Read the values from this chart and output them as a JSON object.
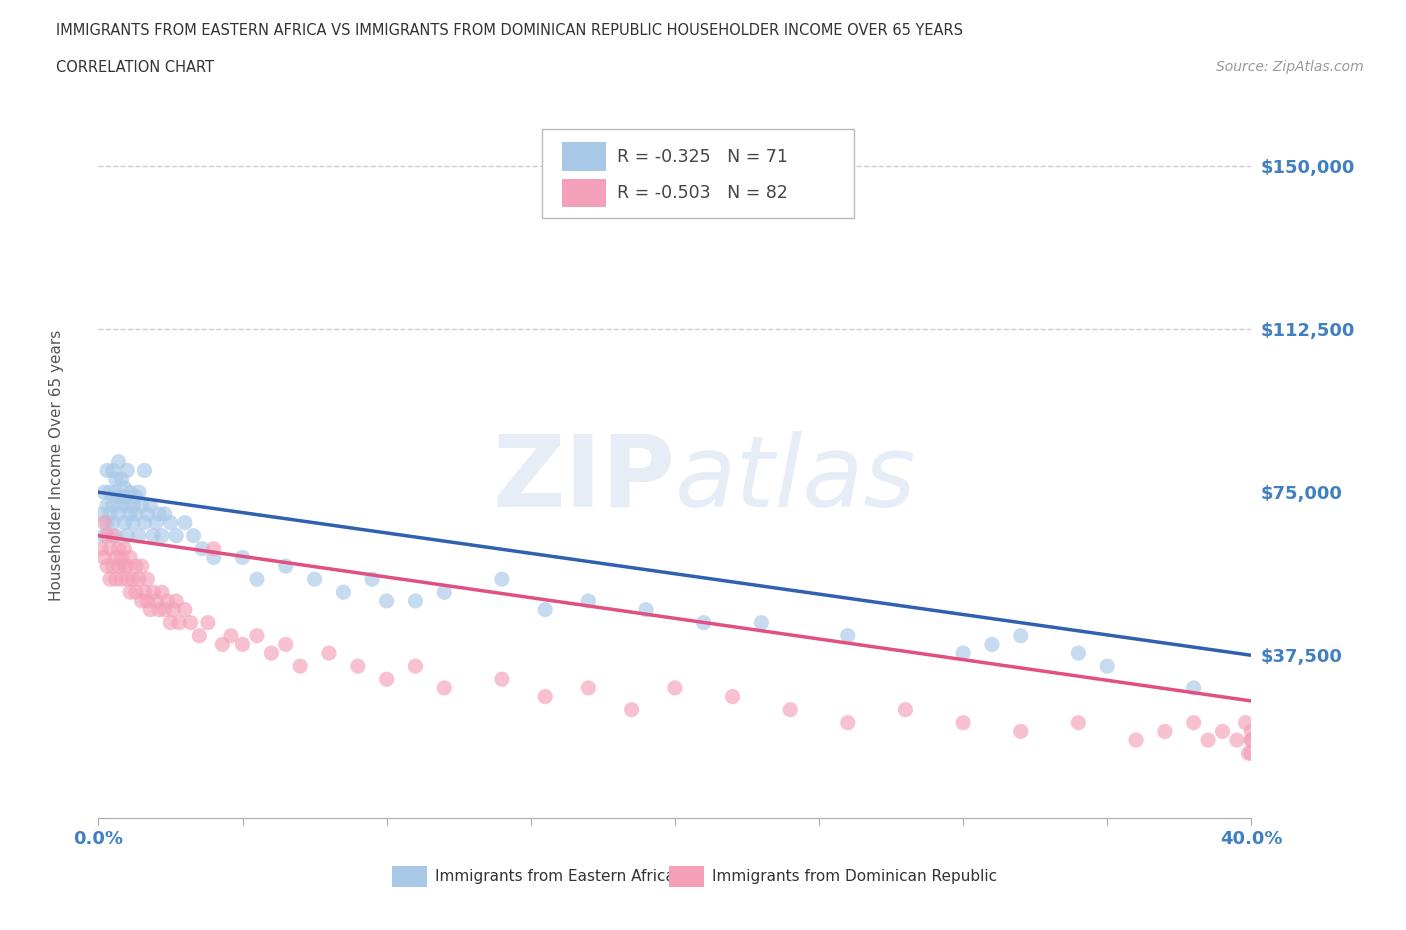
{
  "title_line1": "IMMIGRANTS FROM EASTERN AFRICA VS IMMIGRANTS FROM DOMINICAN REPUBLIC HOUSEHOLDER INCOME OVER 65 YEARS",
  "title_line2": "CORRELATION CHART",
  "source_text": "Source: ZipAtlas.com",
  "ylabel": "Householder Income Over 65 years",
  "xlim": [
    0.0,
    0.4
  ],
  "ylim": [
    0,
    162500
  ],
  "yticks": [
    0,
    37500,
    75000,
    112500,
    150000
  ],
  "xticks": [
    0.0,
    0.05,
    0.1,
    0.15,
    0.2,
    0.25,
    0.3,
    0.35,
    0.4
  ],
  "ytick_labels": [
    "",
    "$37,500",
    "$75,000",
    "$112,500",
    "$150,000"
  ],
  "blue_color": "#a8c8e8",
  "pink_color": "#f4a0b8",
  "blue_line_color": "#3060b0",
  "pink_line_color": "#e05080",
  "legend_r_blue": "R = -0.325",
  "legend_n_blue": "N = 71",
  "legend_r_pink": "R = -0.503",
  "legend_n_pink": "N = 82",
  "watermark_zip": "ZIP",
  "watermark_atlas": "atlas",
  "label_blue": "Immigrants from Eastern Africa",
  "label_pink": "Immigrants from Dominican Republic",
  "blue_scatter_x": [
    0.001,
    0.002,
    0.002,
    0.003,
    0.003,
    0.003,
    0.004,
    0.004,
    0.005,
    0.005,
    0.005,
    0.006,
    0.006,
    0.006,
    0.007,
    0.007,
    0.007,
    0.008,
    0.008,
    0.009,
    0.009,
    0.009,
    0.01,
    0.01,
    0.01,
    0.011,
    0.011,
    0.012,
    0.012,
    0.013,
    0.013,
    0.014,
    0.014,
    0.015,
    0.016,
    0.016,
    0.017,
    0.018,
    0.019,
    0.02,
    0.021,
    0.022,
    0.023,
    0.025,
    0.027,
    0.03,
    0.033,
    0.036,
    0.04,
    0.05,
    0.055,
    0.065,
    0.075,
    0.085,
    0.095,
    0.1,
    0.11,
    0.12,
    0.14,
    0.155,
    0.17,
    0.19,
    0.21,
    0.23,
    0.26,
    0.3,
    0.31,
    0.32,
    0.34,
    0.35,
    0.38
  ],
  "blue_scatter_y": [
    70000,
    65000,
    75000,
    72000,
    80000,
    68000,
    75000,
    70000,
    80000,
    68000,
    72000,
    75000,
    78000,
    65000,
    70000,
    74000,
    82000,
    72000,
    78000,
    68000,
    74000,
    76000,
    65000,
    72000,
    80000,
    70000,
    75000,
    68000,
    72000,
    74000,
    70000,
    75000,
    65000,
    72000,
    80000,
    68000,
    70000,
    72000,
    65000,
    68000,
    70000,
    65000,
    70000,
    68000,
    65000,
    68000,
    65000,
    62000,
    60000,
    60000,
    55000,
    58000,
    55000,
    52000,
    55000,
    50000,
    50000,
    52000,
    55000,
    48000,
    50000,
    48000,
    45000,
    45000,
    42000,
    38000,
    40000,
    42000,
    38000,
    35000,
    30000
  ],
  "pink_scatter_x": [
    0.001,
    0.002,
    0.002,
    0.003,
    0.003,
    0.004,
    0.004,
    0.005,
    0.005,
    0.006,
    0.006,
    0.007,
    0.007,
    0.008,
    0.008,
    0.009,
    0.009,
    0.01,
    0.01,
    0.011,
    0.011,
    0.012,
    0.013,
    0.013,
    0.014,
    0.015,
    0.015,
    0.016,
    0.017,
    0.017,
    0.018,
    0.019,
    0.02,
    0.021,
    0.022,
    0.023,
    0.024,
    0.025,
    0.026,
    0.027,
    0.028,
    0.03,
    0.032,
    0.035,
    0.038,
    0.04,
    0.043,
    0.046,
    0.05,
    0.055,
    0.06,
    0.065,
    0.07,
    0.08,
    0.09,
    0.1,
    0.11,
    0.12,
    0.14,
    0.155,
    0.17,
    0.185,
    0.2,
    0.22,
    0.24,
    0.26,
    0.28,
    0.3,
    0.32,
    0.34,
    0.36,
    0.37,
    0.38,
    0.385,
    0.39,
    0.395,
    0.398,
    0.399,
    0.4,
    0.4,
    0.4,
    0.4
  ],
  "pink_scatter_y": [
    62000,
    60000,
    68000,
    58000,
    65000,
    62000,
    55000,
    65000,
    58000,
    60000,
    55000,
    62000,
    58000,
    55000,
    60000,
    58000,
    62000,
    55000,
    58000,
    60000,
    52000,
    55000,
    58000,
    52000,
    55000,
    50000,
    58000,
    52000,
    55000,
    50000,
    48000,
    52000,
    50000,
    48000,
    52000,
    48000,
    50000,
    45000,
    48000,
    50000,
    45000,
    48000,
    45000,
    42000,
    45000,
    62000,
    40000,
    42000,
    40000,
    42000,
    38000,
    40000,
    35000,
    38000,
    35000,
    32000,
    35000,
    30000,
    32000,
    28000,
    30000,
    25000,
    30000,
    28000,
    25000,
    22000,
    25000,
    22000,
    20000,
    22000,
    18000,
    20000,
    22000,
    18000,
    20000,
    18000,
    22000,
    15000,
    18000,
    20000,
    15000,
    18000
  ],
  "blue_regline_x0": 0.0,
  "blue_regline_y0": 75000,
  "blue_regline_x1": 0.4,
  "blue_regline_y1": 37500,
  "pink_regline_x0": 0.0,
  "pink_regline_y0": 65000,
  "pink_regline_x1": 0.4,
  "pink_regline_y1": 27000,
  "grid_color": "#cccccc",
  "background_color": "#ffffff",
  "title_color": "#333333",
  "axis_label_color": "#555555",
  "ytick_color": "#4080c0",
  "xtick_color": "#4080c0"
}
